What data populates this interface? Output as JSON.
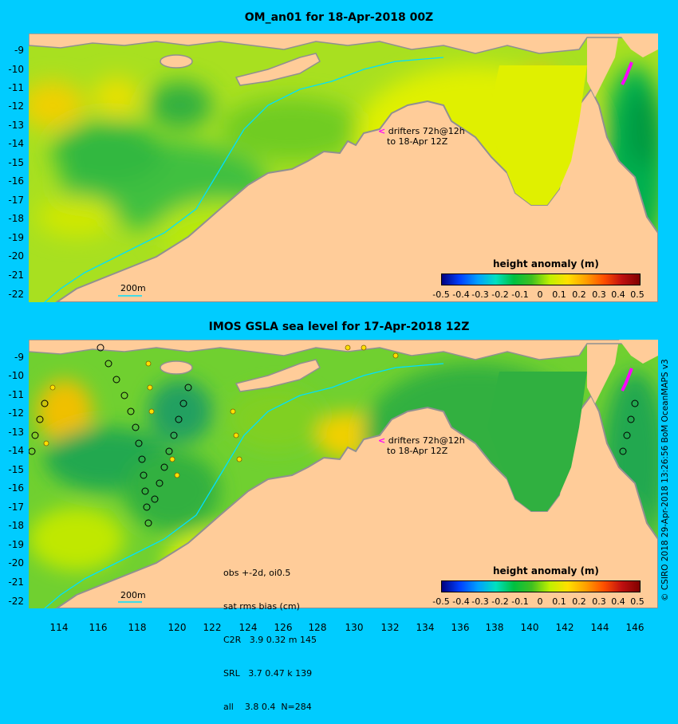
{
  "top_panel": {
    "title": "OM_an01 for 18-Apr-2018 00Z",
    "drifters_note_line1": "drifters 72h@12h",
    "drifters_note_line2": "to 18-Apr 12Z",
    "isobath_label": "200m",
    "colorbar_title": "height anomaly (m)"
  },
  "bottom_panel": {
    "title": "IMOS GSLA sea level  for 17-Apr-2018 12Z",
    "drifters_note_line1": "drifters 72h@12h",
    "drifters_note_line2": "to 18-Apr 12Z",
    "isobath_label": "200m",
    "colorbar_title": "height anomaly (m)",
    "stats": {
      "line1": "obs +-2d, oi0.5",
      "line2": "sat rms bias (cm)",
      "line3": "C2R   3.9 0.32 m 145",
      "line4": "SRL   3.7 0.47 k 139",
      "line5": "all    3.8 0.4  N=284"
    }
  },
  "colorbar": {
    "labels": [
      "-0.5",
      "-0.4",
      "-0.3",
      "-0.2",
      "-0.1",
      "0",
      "0.1",
      "0.2",
      "0.3",
      "0.4",
      "0.5"
    ],
    "colors": [
      "#000080",
      "#0040ff",
      "#00a0ff",
      "#00e0c0",
      "#00c040",
      "#40c020",
      "#c0f000",
      "#ffe000",
      "#ffa000",
      "#ff5000",
      "#c01010",
      "#800000"
    ]
  },
  "axes": {
    "y_ticks": [
      "-9",
      "-10",
      "-11",
      "-12",
      "-13",
      "-14",
      "-15",
      "-16",
      "-17",
      "-18",
      "-19",
      "-20",
      "-21",
      "-22"
    ],
    "x_ticks": [
      "114",
      "116",
      "118",
      "120",
      "122",
      "124",
      "126",
      "128",
      "130",
      "132",
      "134",
      "136",
      "138",
      "140",
      "142",
      "144",
      "146"
    ]
  },
  "credit": "© CSIRO 2018  29-Apr-2018 13:26:56 BoM OceanMAPS v3",
  "colors": {
    "background": "#00ccff",
    "land": "#ffcc99",
    "coast_shelf": "#999999",
    "drifter": "#ff00ff",
    "isobath": "#00e0ff"
  }
}
